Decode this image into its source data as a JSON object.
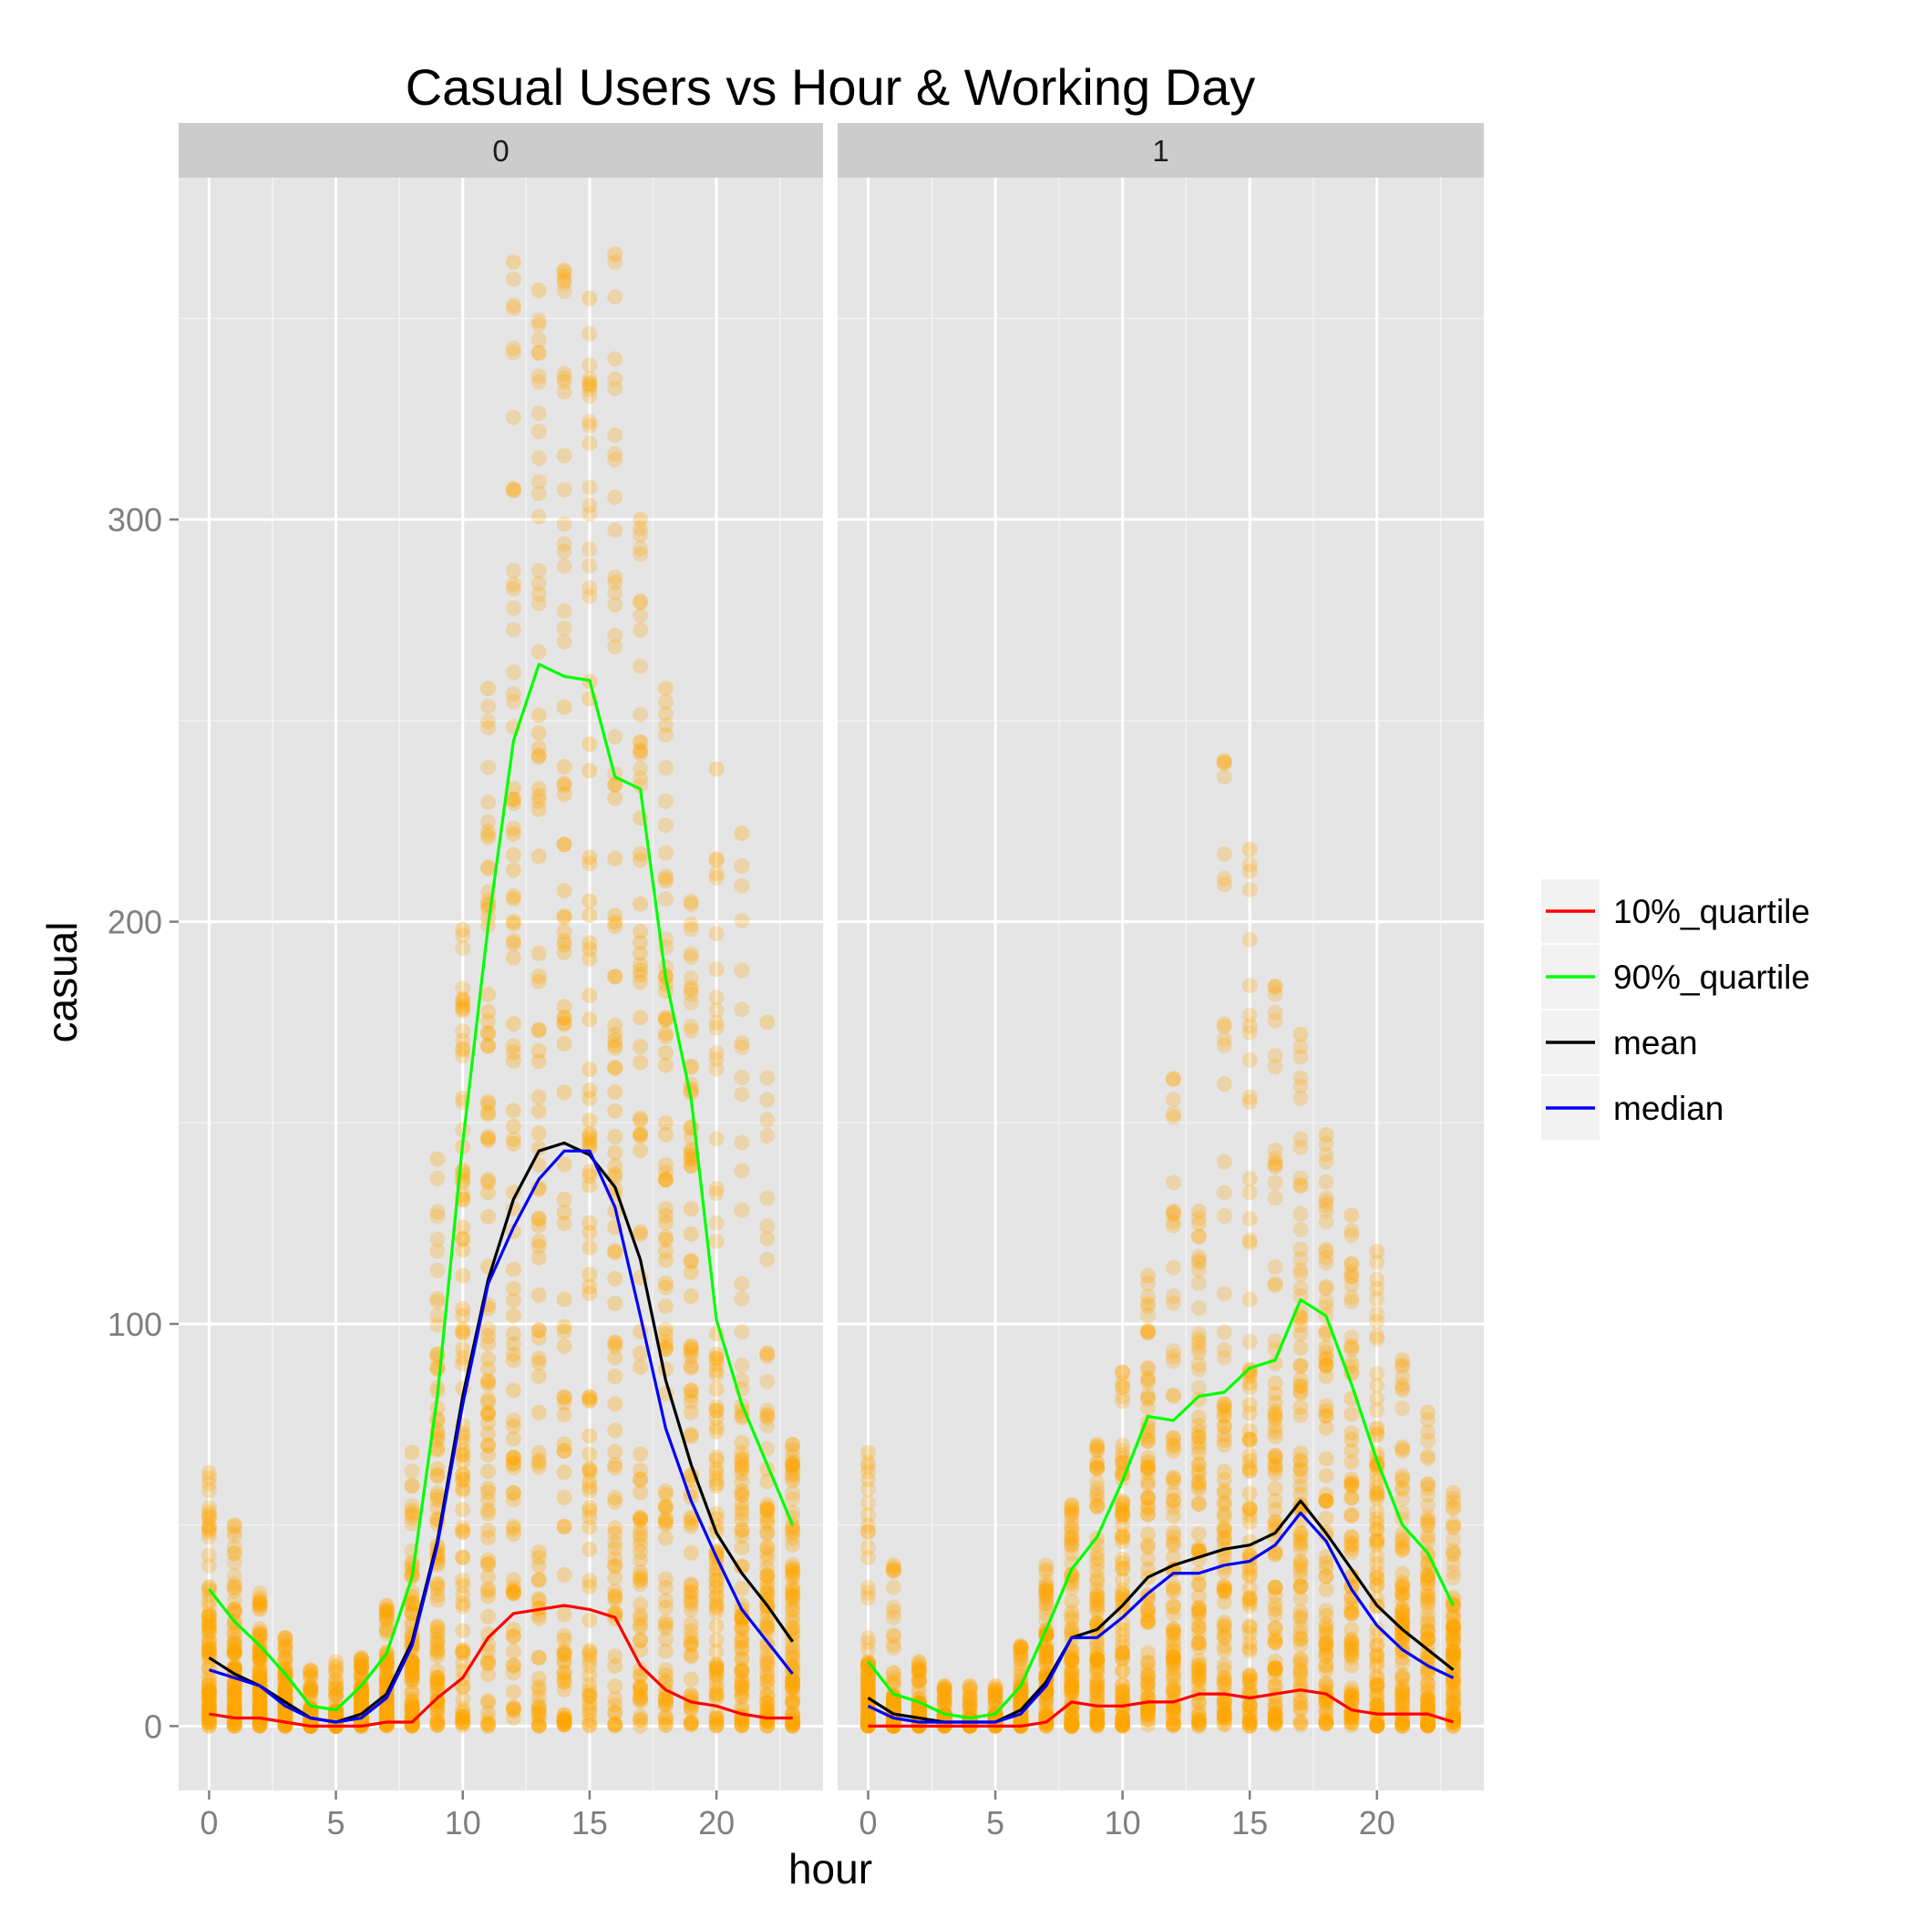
{
  "chart_data": {
    "type": "scatter",
    "title": "Casual Users vs Hour & Working Day",
    "xlabel": "hour",
    "ylabel": "casual",
    "x_ticks": [
      0,
      5,
      10,
      15,
      20
    ],
    "y_ticks": [
      0,
      100,
      200,
      300
    ],
    "x_range": [
      -1.2,
      24.2
    ],
    "y_range": [
      -16,
      385
    ],
    "grid": true,
    "legend_position": "right",
    "colors": {
      "points": "#FFA500",
      "panel_bg": "#E5E5E5",
      "strip_bg": "#CCCCCC",
      "grid": "#FFFFFF",
      "10%_quartile": "#FF0000",
      "90%_quartile": "#00FF00",
      "mean": "#000000",
      "median": "#0000FF"
    },
    "legend": [
      {
        "name": "10%_quartile",
        "color": "#FF0000"
      },
      {
        "name": "90%_quartile",
        "color": "#00FF00"
      },
      {
        "name": "mean",
        "color": "#000000"
      },
      {
        "name": "median",
        "color": "#0000FF"
      }
    ],
    "panels": [
      {
        "label": "0",
        "x": [
          0,
          1,
          2,
          3,
          4,
          5,
          6,
          7,
          8,
          9,
          10,
          11,
          12,
          13,
          14,
          15,
          16,
          17,
          18,
          19,
          20,
          21,
          22,
          23
        ],
        "series": [
          {
            "name": "10%_quartile",
            "values": [
              3,
              2,
              2,
              1,
              0,
              0,
              0,
              1,
              1,
              7,
              12,
              22,
              28,
              29,
              30,
              29,
              27,
              15,
              9,
              6,
              5,
              3,
              2,
              2
            ]
          },
          {
            "name": "90%_quartile",
            "values": [
              34,
              26,
              20,
              13,
              5,
              4,
              10,
              18,
              37,
              82,
              145,
              199,
              245,
              264,
              261,
              260,
              236,
              233,
              186,
              156,
              101,
              80,
              65,
              50
            ]
          },
          {
            "name": "mean",
            "values": [
              17,
              13,
              10,
              6,
              2,
              1,
              3,
              8,
              21,
              46,
              82,
              111,
              131,
              143,
              145,
              142,
              134,
              116,
              86,
              65,
              48,
              38,
              30,
              21
            ]
          },
          {
            "name": "median",
            "values": [
              14,
              12,
              10,
              5,
              2,
              1,
              2,
              7,
              20,
              45,
              80,
              110,
              124,
              136,
              143,
              143,
              129,
              102,
              74,
              56,
              42,
              29,
              21,
              13
            ]
          }
        ],
        "scatter_max": [
          63,
          50,
          33,
          22,
          14,
          16,
          17,
          30,
          68,
          141,
          198,
          258,
          364,
          357,
          362,
          355,
          366,
          300,
          258,
          205,
          238,
          222,
          175,
          70
        ]
      },
      {
        "label": "1",
        "x": [
          0,
          1,
          2,
          3,
          4,
          5,
          6,
          7,
          8,
          9,
          10,
          11,
          12,
          13,
          14,
          15,
          16,
          17,
          18,
          19,
          20,
          21,
          22,
          23
        ],
        "series": [
          {
            "name": "10%_quartile",
            "values": [
              0,
              0,
              0,
              0,
              0,
              0,
              0,
              1,
              6,
              5,
              5,
              6,
              6,
              8,
              8,
              7,
              8,
              9,
              8,
              4,
              3,
              3,
              3,
              1
            ]
          },
          {
            "name": "90%_quartile",
            "values": [
              16,
              8,
              6,
              3,
              2,
              3,
              10,
              24,
              39,
              47,
              61,
              77,
              76,
              82,
              83,
              89,
              91,
              106,
              102,
              85,
              66,
              50,
              43,
              30
            ]
          },
          {
            "name": "mean",
            "values": [
              7,
              3,
              2,
              1,
              1,
              1,
              4,
              11,
              22,
              24,
              30,
              37,
              40,
              42,
              44,
              45,
              48,
              56,
              48,
              39,
              30,
              24,
              19,
              14
            ]
          },
          {
            "name": "median",
            "values": [
              5,
              2,
              1,
              1,
              1,
              1,
              3,
              10,
              22,
              22,
              27,
              33,
              38,
              38,
              40,
              41,
              45,
              53,
              46,
              34,
              25,
              19,
              15,
              12
            ]
          }
        ],
        "scatter_max": [
          68,
          40,
          16,
          10,
          10,
          10,
          20,
          40,
          55,
          70,
          88,
          112,
          161,
          128,
          240,
          218,
          184,
          172,
          147,
          127,
          118,
          91,
          78,
          58
        ]
      }
    ]
  }
}
